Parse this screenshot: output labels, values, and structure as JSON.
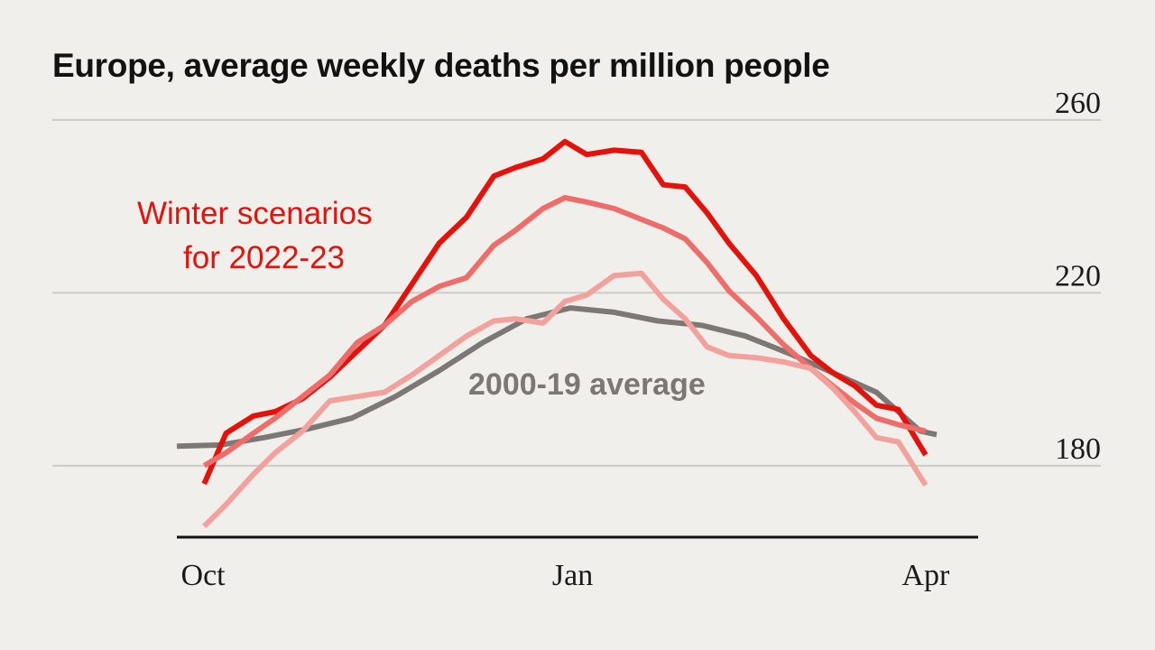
{
  "chart_data": {
    "type": "line",
    "title": "Europe, average weekly deaths per million people",
    "xlabel": "",
    "ylabel": "",
    "x": [
      0,
      1,
      2,
      3,
      4,
      5,
      6,
      7,
      8,
      9,
      10,
      11,
      12,
      13,
      14,
      15,
      16,
      17,
      18,
      19,
      20,
      21,
      22,
      23,
      24,
      25,
      26,
      27,
      28,
      29,
      30,
      31,
      32,
      33,
      34,
      35,
      36,
      37,
      38,
      39,
      40,
      41,
      42,
      43,
      44,
      45,
      46,
      47,
      48,
      49,
      50,
      51,
      52,
      53,
      54,
      55,
      56,
      57,
      58,
      59,
      60,
      61,
      62,
      63,
      64,
      65,
      66,
      67,
      68,
      69
    ],
    "ylim": [
      162,
      270
    ],
    "xlim": [
      0,
      73.3
    ],
    "grid": true,
    "x_ticks": [
      {
        "label": "Oct",
        "pos": 2.4
      },
      {
        "label": "Jan",
        "pos": 36.2
      },
      {
        "label": "Apr",
        "pos": 68.5
      }
    ],
    "y_ticks": [
      {
        "label": "180",
        "value": 180
      },
      {
        "label": "220",
        "value": 220
      },
      {
        "label": "260",
        "value": 260
      }
    ],
    "annotations": {
      "scenarios_line1": "Winter scenarios",
      "scenarios_line2": "for 2022-23",
      "average": "2000-19 average"
    },
    "series": [
      {
        "name": "2000-19 average",
        "color": "#7b7875",
        "points": [
          [
            0,
            184.5
          ],
          [
            4,
            184.8
          ],
          [
            8,
            186.5
          ],
          [
            12,
            188.5
          ],
          [
            16,
            191
          ],
          [
            20,
            196
          ],
          [
            24,
            202
          ],
          [
            28,
            208.5
          ],
          [
            32,
            214
          ],
          [
            36,
            216.5
          ],
          [
            40,
            215.5
          ],
          [
            44,
            213.5
          ],
          [
            48,
            212.5
          ],
          [
            52,
            210
          ],
          [
            56,
            206
          ],
          [
            60,
            201.5
          ],
          [
            64,
            197
          ],
          [
            68,
            188
          ],
          [
            69.5,
            187.2
          ]
        ]
      },
      {
        "name": "",
        "color": "#e3120b",
        "points": [
          [
            2.5,
            175.8
          ],
          [
            4.5,
            187.5
          ],
          [
            7,
            191.5
          ],
          [
            9,
            192.5
          ],
          [
            11.5,
            195.5
          ],
          [
            14,
            200.5
          ],
          [
            16.5,
            206.5
          ],
          [
            19,
            212.5
          ],
          [
            21.5,
            222
          ],
          [
            24,
            231.5
          ],
          [
            26.5,
            237.5
          ],
          [
            29,
            247
          ],
          [
            31,
            249
          ],
          [
            33.5,
            251
          ],
          [
            35.5,
            255
          ],
          [
            37.5,
            252
          ],
          [
            40,
            253
          ],
          [
            42.5,
            252.5
          ],
          [
            44.5,
            245
          ],
          [
            46.5,
            244.5
          ],
          [
            48.5,
            238.5
          ],
          [
            50.5,
            231.5
          ],
          [
            53,
            224
          ],
          [
            55.5,
            214
          ],
          [
            58,
            205.5
          ],
          [
            60,
            201.5
          ],
          [
            62,
            198.5
          ],
          [
            64,
            194
          ],
          [
            66,
            193
          ],
          [
            68.5,
            182.5
          ]
        ]
      },
      {
        "name": "",
        "color": "#ee6d6a",
        "points": [
          [
            2.5,
            180
          ],
          [
            4.5,
            183
          ],
          [
            7,
            187.5
          ],
          [
            9,
            191
          ],
          [
            11.5,
            196
          ],
          [
            14,
            201
          ],
          [
            16.5,
            208.5
          ],
          [
            19,
            212.5
          ],
          [
            21.5,
            218
          ],
          [
            24,
            221.5
          ],
          [
            26.5,
            223.5
          ],
          [
            29,
            231
          ],
          [
            31,
            234.5
          ],
          [
            33.5,
            239.5
          ],
          [
            35.5,
            242
          ],
          [
            37.5,
            241
          ],
          [
            40,
            239.5
          ],
          [
            42.5,
            237
          ],
          [
            44.5,
            235
          ],
          [
            46.5,
            232.5
          ],
          [
            48.5,
            227
          ],
          [
            50.5,
            220.5
          ],
          [
            53,
            214.5
          ],
          [
            55.5,
            208
          ],
          [
            58,
            202.5
          ],
          [
            60,
            198.5
          ],
          [
            62,
            194.5
          ],
          [
            64,
            191
          ],
          [
            66,
            189.5
          ],
          [
            68.5,
            188
          ]
        ]
      },
      {
        "name": "",
        "color": "#f3a19d",
        "points": [
          [
            2.5,
            166
          ],
          [
            4.5,
            171
          ],
          [
            7,
            178
          ],
          [
            9,
            183
          ],
          [
            11.5,
            188
          ],
          [
            14,
            195
          ],
          [
            16.5,
            196
          ],
          [
            19,
            197
          ],
          [
            21.5,
            201
          ],
          [
            24,
            205.5
          ],
          [
            26.5,
            210
          ],
          [
            29,
            213.5
          ],
          [
            31,
            214
          ],
          [
            33.5,
            213
          ],
          [
            35.5,
            218
          ],
          [
            37.5,
            219.5
          ],
          [
            40,
            224
          ],
          [
            42.5,
            224.5
          ],
          [
            44.5,
            218.5
          ],
          [
            46.5,
            214
          ],
          [
            48.5,
            207.5
          ],
          [
            50.5,
            205.5
          ],
          [
            53,
            205
          ],
          [
            55.5,
            204
          ],
          [
            58,
            202.5
          ],
          [
            60,
            198
          ],
          [
            62,
            192.5
          ],
          [
            64,
            186.5
          ],
          [
            66,
            185.5
          ],
          [
            68.5,
            175.5
          ]
        ]
      }
    ]
  }
}
